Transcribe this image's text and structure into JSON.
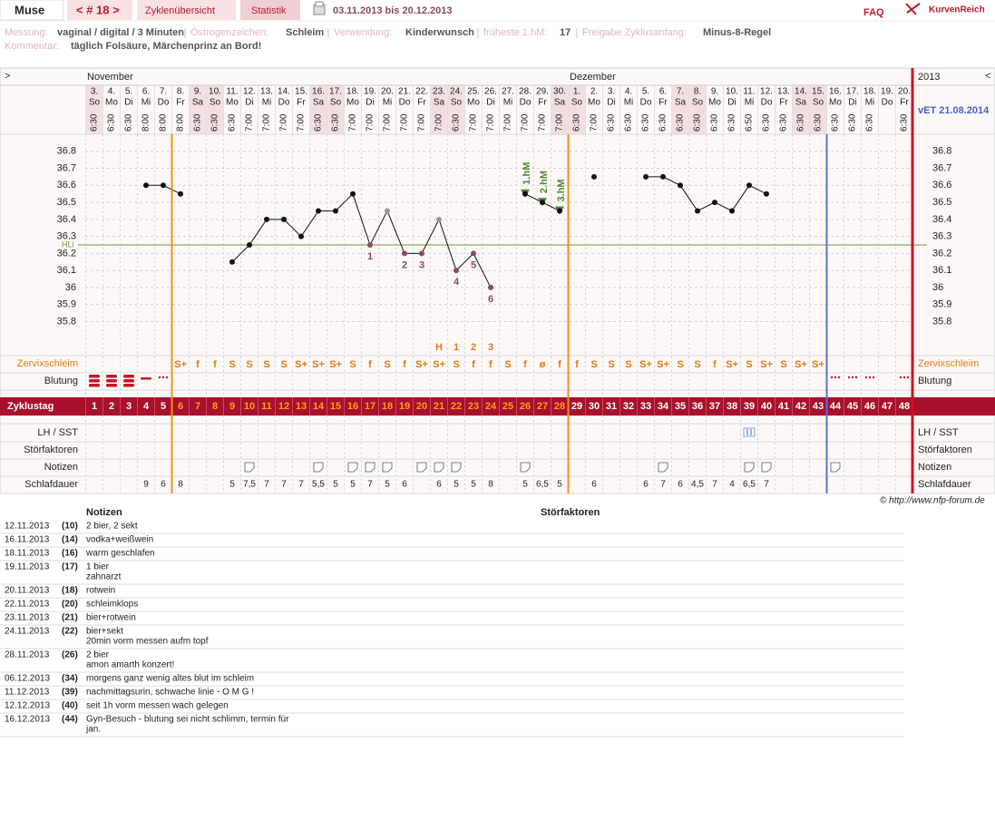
{
  "header": {
    "user": "Muse",
    "cycle_nav": "< # 18 >",
    "tabs": [
      "Zyklenübersicht",
      "Statistik"
    ],
    "date_range": "03.11.2013 bis 20.12.2013",
    "faq": "FAQ",
    "brand": "KurvenReich"
  },
  "info": {
    "fields": [
      {
        "label": "Messung:",
        "value": "vaginal / digital / 3 Minuten"
      },
      {
        "label": "Östrogenzeichen:",
        "value": "Schleim"
      },
      {
        "label": "Verwendung:",
        "value": "Kinderwunsch"
      },
      {
        "label": "früheste 1.hM:",
        "value": "17"
      },
      {
        "label": "Freigabe Zyklusanfang:",
        "value": "Minus-8-Regel"
      }
    ],
    "comment_label": "Kommentar:",
    "comment": "täglich Folsäure, Märchenprinz an Bord!"
  },
  "chart": {
    "nav_prev": ">",
    "nav_next": "<",
    "months": [
      "November",
      "Dezember"
    ],
    "year": "2013",
    "due_date": "vET 21.08.2014",
    "dates": [
      "3.",
      "4.",
      "5.",
      "6.",
      "7.",
      "8.",
      "9.",
      "10.",
      "11.",
      "12.",
      "13.",
      "14.",
      "15.",
      "16.",
      "17.",
      "18.",
      "19.",
      "20.",
      "21.",
      "22.",
      "23.",
      "24.",
      "25.",
      "26.",
      "27.",
      "28.",
      "29.",
      "30.",
      "1.",
      "2.",
      "3.",
      "4.",
      "5.",
      "6.",
      "7.",
      "8.",
      "9.",
      "10.",
      "11.",
      "12.",
      "13.",
      "14.",
      "15.",
      "16.",
      "17.",
      "18.",
      "19.",
      "20."
    ],
    "weekdays": [
      "So",
      "Mo",
      "Di",
      "Mi",
      "Do",
      "Fr",
      "Sa",
      "So",
      "Mo",
      "Di",
      "Mi",
      "Do",
      "Fr",
      "Sa",
      "So",
      "Mo",
      "Di",
      "Mi",
      "Do",
      "Fr",
      "Sa",
      "So",
      "Mo",
      "Di",
      "Mi",
      "Do",
      "Fr",
      "Sa",
      "So",
      "Mo",
      "Di",
      "Mi",
      "Do",
      "Fr",
      "Sa",
      "So",
      "Mo",
      "Di",
      "Mi",
      "Do",
      "Fr",
      "Sa",
      "So",
      "Mo",
      "Di",
      "Mi",
      "Do",
      "Fr"
    ],
    "times": [
      "6:30",
      "6:30",
      "6:30",
      "8:00",
      "8:00",
      "8:00",
      "6:30",
      "6:30",
      "6:30",
      "7:00",
      "7:00",
      "7:00",
      "7:00",
      "6:30",
      "6:30",
      "7:00",
      "7:00",
      "7:00",
      "7:00",
      "7:00",
      "7:00",
      "6:30",
      "7:00",
      "7:00",
      "7:00",
      "7:00",
      "7:00",
      "7:00",
      "6:30",
      "7:00",
      "6:30",
      "6:30",
      "6:30",
      "6:30",
      "6:30",
      "6:30",
      "6:30",
      "6:30",
      "6:50",
      "6:30",
      "6:30",
      "6:30",
      "6:30",
      "6:30",
      "6:30",
      "6:30",
      null,
      "6:30"
    ],
    "temperatures": [
      null,
      null,
      null,
      36.6,
      36.6,
      36.55,
      null,
      null,
      36.15,
      36.25,
      36.4,
      36.4,
      36.3,
      36.45,
      36.45,
      36.55,
      36.25,
      36.45,
      36.2,
      36.2,
      36.4,
      36.1,
      36.2,
      36.0,
      null,
      36.55,
      36.5,
      36.45,
      null,
      36.65,
      null,
      null,
      36.65,
      36.65,
      36.6,
      36.45,
      36.5,
      36.45,
      36.6,
      36.55,
      null,
      null,
      null,
      null,
      null,
      null,
      null,
      null
    ],
    "excluded_days": [
      18,
      21
    ],
    "low_labels": [
      {
        "day": 17,
        "label": "1"
      },
      {
        "day": 19,
        "label": "2"
      },
      {
        "day": 20,
        "label": "3"
      },
      {
        "day": 22,
        "label": "4"
      },
      {
        "day": 23,
        "label": "5"
      },
      {
        "day": 24,
        "label": "6"
      }
    ],
    "hm_markers": [
      {
        "day": 26,
        "label": "1.hM"
      },
      {
        "day": 27,
        "label": "2.hM"
      },
      {
        "day": 28,
        "label": "3.hM"
      }
    ],
    "cover_line": {
      "label": "HLi",
      "value": 36.25
    },
    "ylim": [
      35.6,
      36.9
    ],
    "yticks": [
      35.8,
      35.9,
      36,
      36.1,
      36.2,
      36.3,
      36.4,
      36.5,
      36.6,
      36.7,
      36.8
    ],
    "orange_line_days": [
      6,
      29
    ],
    "blue_line_day": 44,
    "row_labels": {
      "cervix": "Zervixschleim",
      "bleeding": "Blutung",
      "cycle_day": "Zyklustag",
      "lh": "LH / SST",
      "disturb": "Störfaktoren",
      "notes": "Notizen",
      "sleep": "Schlafdauer"
    },
    "peak_row": [
      {
        "day": 21,
        "label": "H"
      },
      {
        "day": 22,
        "label": "1"
      },
      {
        "day": 23,
        "label": "2"
      },
      {
        "day": 24,
        "label": "3"
      }
    ],
    "cervix": [
      null,
      null,
      null,
      null,
      null,
      "S+",
      "f",
      "f",
      "S",
      "S",
      "S",
      "S",
      "S+",
      "S+",
      "S+",
      "S",
      "f",
      "S",
      "f",
      "S+",
      "S+",
      "S",
      "f",
      "f",
      "S",
      "f",
      "ø",
      "f",
      "f",
      "S",
      "S",
      "S",
      "S+",
      "S+",
      "S",
      "S",
      "f",
      "S+",
      "S",
      "S+",
      "S",
      "S+",
      "S+",
      null,
      null,
      null,
      null,
      null
    ],
    "bleeding": [
      "heavy",
      "heavy",
      "heavy",
      "light",
      "spotting",
      null,
      null,
      null,
      null,
      null,
      null,
      null,
      null,
      null,
      null,
      null,
      null,
      null,
      null,
      null,
      null,
      null,
      null,
      null,
      null,
      null,
      null,
      null,
      null,
      null,
      null,
      null,
      null,
      null,
      null,
      null,
      null,
      null,
      null,
      null,
      null,
      null,
      null,
      "spotting",
      "spotting",
      "spotting",
      null,
      "spotting"
    ],
    "cycle_days": [
      1,
      2,
      3,
      4,
      5,
      6,
      7,
      8,
      9,
      10,
      11,
      12,
      13,
      14,
      15,
      16,
      17,
      18,
      19,
      20,
      21,
      22,
      23,
      24,
      25,
      26,
      27,
      28,
      29,
      30,
      31,
      32,
      33,
      34,
      35,
      36,
      37,
      38,
      39,
      40,
      41,
      42,
      43,
      44,
      45,
      46,
      47,
      48
    ],
    "lh_days": [
      39
    ],
    "note_days": [
      10,
      14,
      16,
      17,
      18,
      20,
      21,
      22,
      26,
      34,
      39,
      40,
      44
    ],
    "sleep": [
      null,
      null,
      null,
      "9",
      "6",
      "8",
      null,
      null,
      "5",
      "7,5",
      "7",
      "7",
      "7",
      "5,5",
      "5",
      "5",
      "7",
      "5",
      "6",
      null,
      "6",
      "5",
      "5",
      "8",
      null,
      "5",
      "6,5",
      "5",
      null,
      "6",
      null,
      null,
      "6",
      "7",
      "6",
      "4,5",
      "7",
      "4",
      "6,5",
      "7",
      null,
      null,
      null,
      null,
      null,
      null,
      null,
      null
    ]
  },
  "copyright": "© http://www.nfp-forum.de",
  "notes_table": {
    "headers": [
      "Notizen",
      "Störfaktoren"
    ],
    "rows": [
      {
        "date": "12.11.2013",
        "day": "(10)",
        "lines": [
          "2 bier, 2 sekt"
        ]
      },
      {
        "date": "16.11.2013",
        "day": "(14)",
        "lines": [
          "vodka+weißwein"
        ]
      },
      {
        "date": "18.11.2013",
        "day": "(16)",
        "lines": [
          "warm geschlafen"
        ]
      },
      {
        "date": "19.11.2013",
        "day": "(17)",
        "lines": [
          "1 bier",
          "zahnarzt"
        ]
      },
      {
        "date": "20.11.2013",
        "day": "(18)",
        "lines": [
          "rotwein"
        ]
      },
      {
        "date": "22.11.2013",
        "day": "(20)",
        "lines": [
          "schleimklops"
        ]
      },
      {
        "date": "23.11.2013",
        "day": "(21)",
        "lines": [
          "bier+rotwein"
        ]
      },
      {
        "date": "24.11.2013",
        "day": "(22)",
        "lines": [
          "bier+sekt",
          "20min vorm messen aufm topf"
        ]
      },
      {
        "date": "28.11.2013",
        "day": "(26)",
        "lines": [
          "2 bier",
          "amon amarth konzert!"
        ]
      },
      {
        "date": "06.12.2013",
        "day": "(34)",
        "lines": [
          "morgens ganz wenig altes blut im schleim"
        ]
      },
      {
        "date": "11.12.2013",
        "day": "(39)",
        "lines": [
          "nachmittagsurin, schwache linie - O M G !"
        ]
      },
      {
        "date": "12.12.2013",
        "day": "(40)",
        "lines": [
          "seit 1h vorm messen wach gelegen"
        ]
      },
      {
        "date": "16.12.2013",
        "day": "(44)",
        "lines": [
          "Gyn-Besuch - blutung sei nicht schlimm, termin für",
          "jan."
        ]
      }
    ]
  }
}
